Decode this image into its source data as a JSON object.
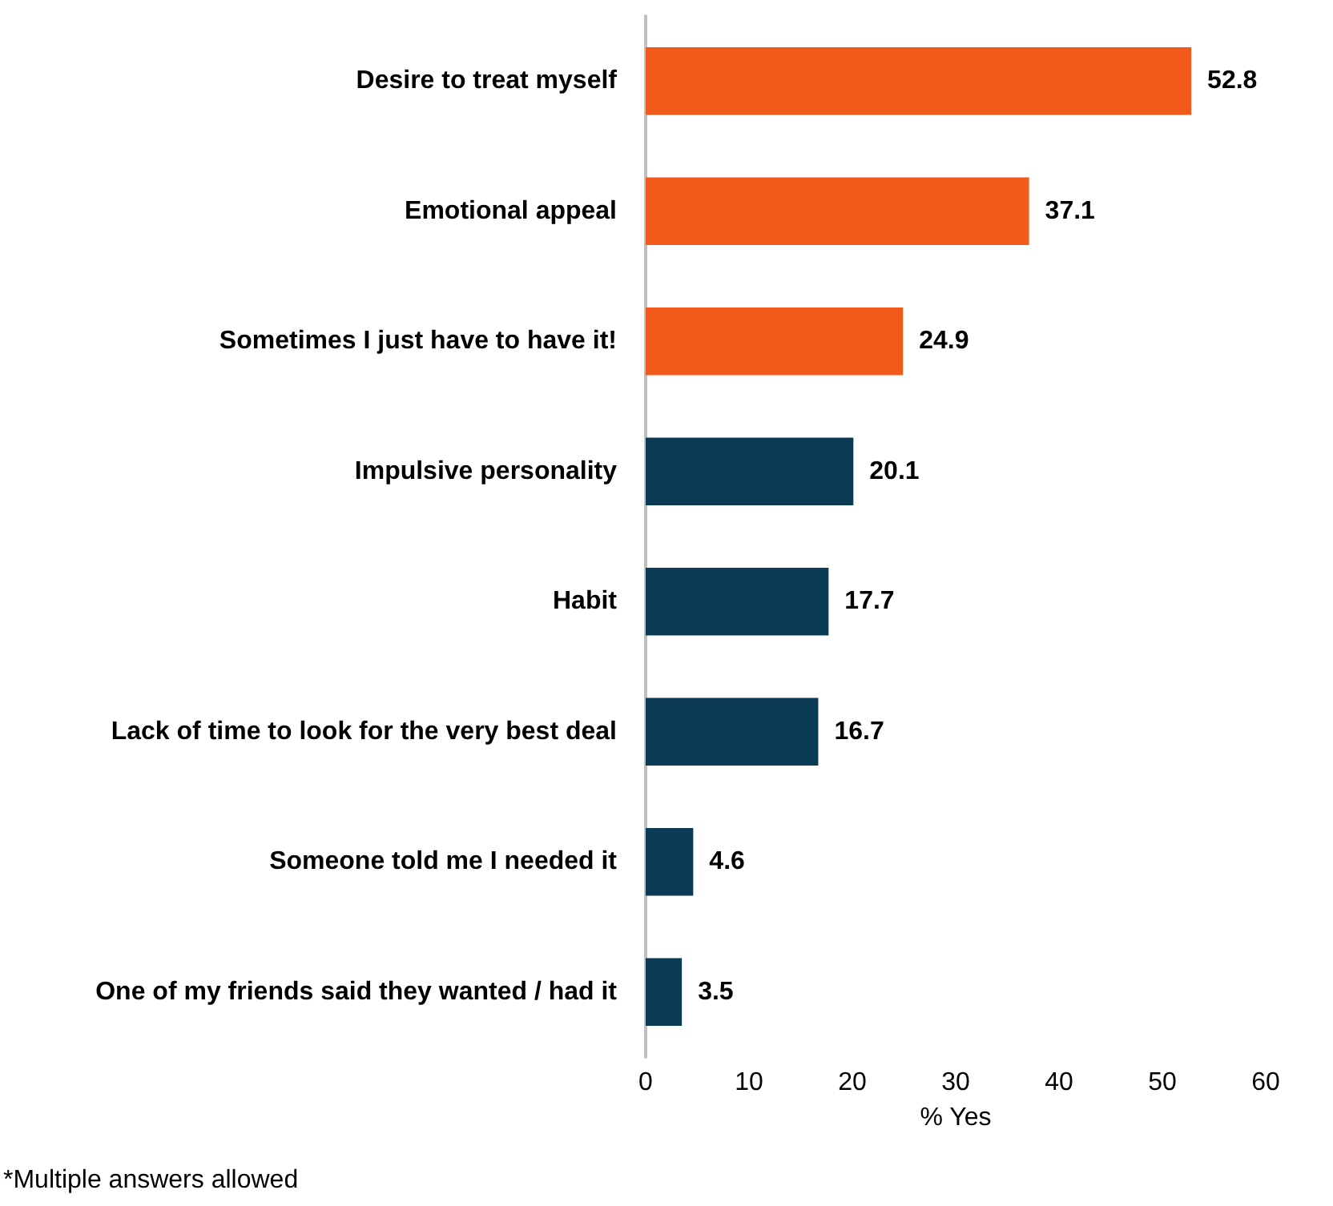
{
  "chart_data": {
    "type": "bar",
    "orientation": "horizontal",
    "categories": [
      "Desire to treat myself",
      "Emotional appeal",
      "Sometimes I just have to have it!",
      "Impulsive personality",
      "Habit",
      "Lack of time to look for the very best deal",
      "Someone told me I needed it",
      "One of my friends said they wanted / had it"
    ],
    "values": [
      52.8,
      37.1,
      24.9,
      20.1,
      17.7,
      16.7,
      4.6,
      3.5
    ],
    "colors": [
      "#f15a1b",
      "#f15a1b",
      "#f15a1b",
      "#0b3a55",
      "#0b3a55",
      "#0b3a55",
      "#0b3a55",
      "#0b3a55"
    ],
    "xlim": [
      0,
      60
    ],
    "xticks": [
      0,
      10,
      20,
      30,
      40,
      50,
      60
    ],
    "xlabel": "% Yes",
    "data_labels": true,
    "annotations": [
      "*Multiple answers allowed"
    ]
  }
}
